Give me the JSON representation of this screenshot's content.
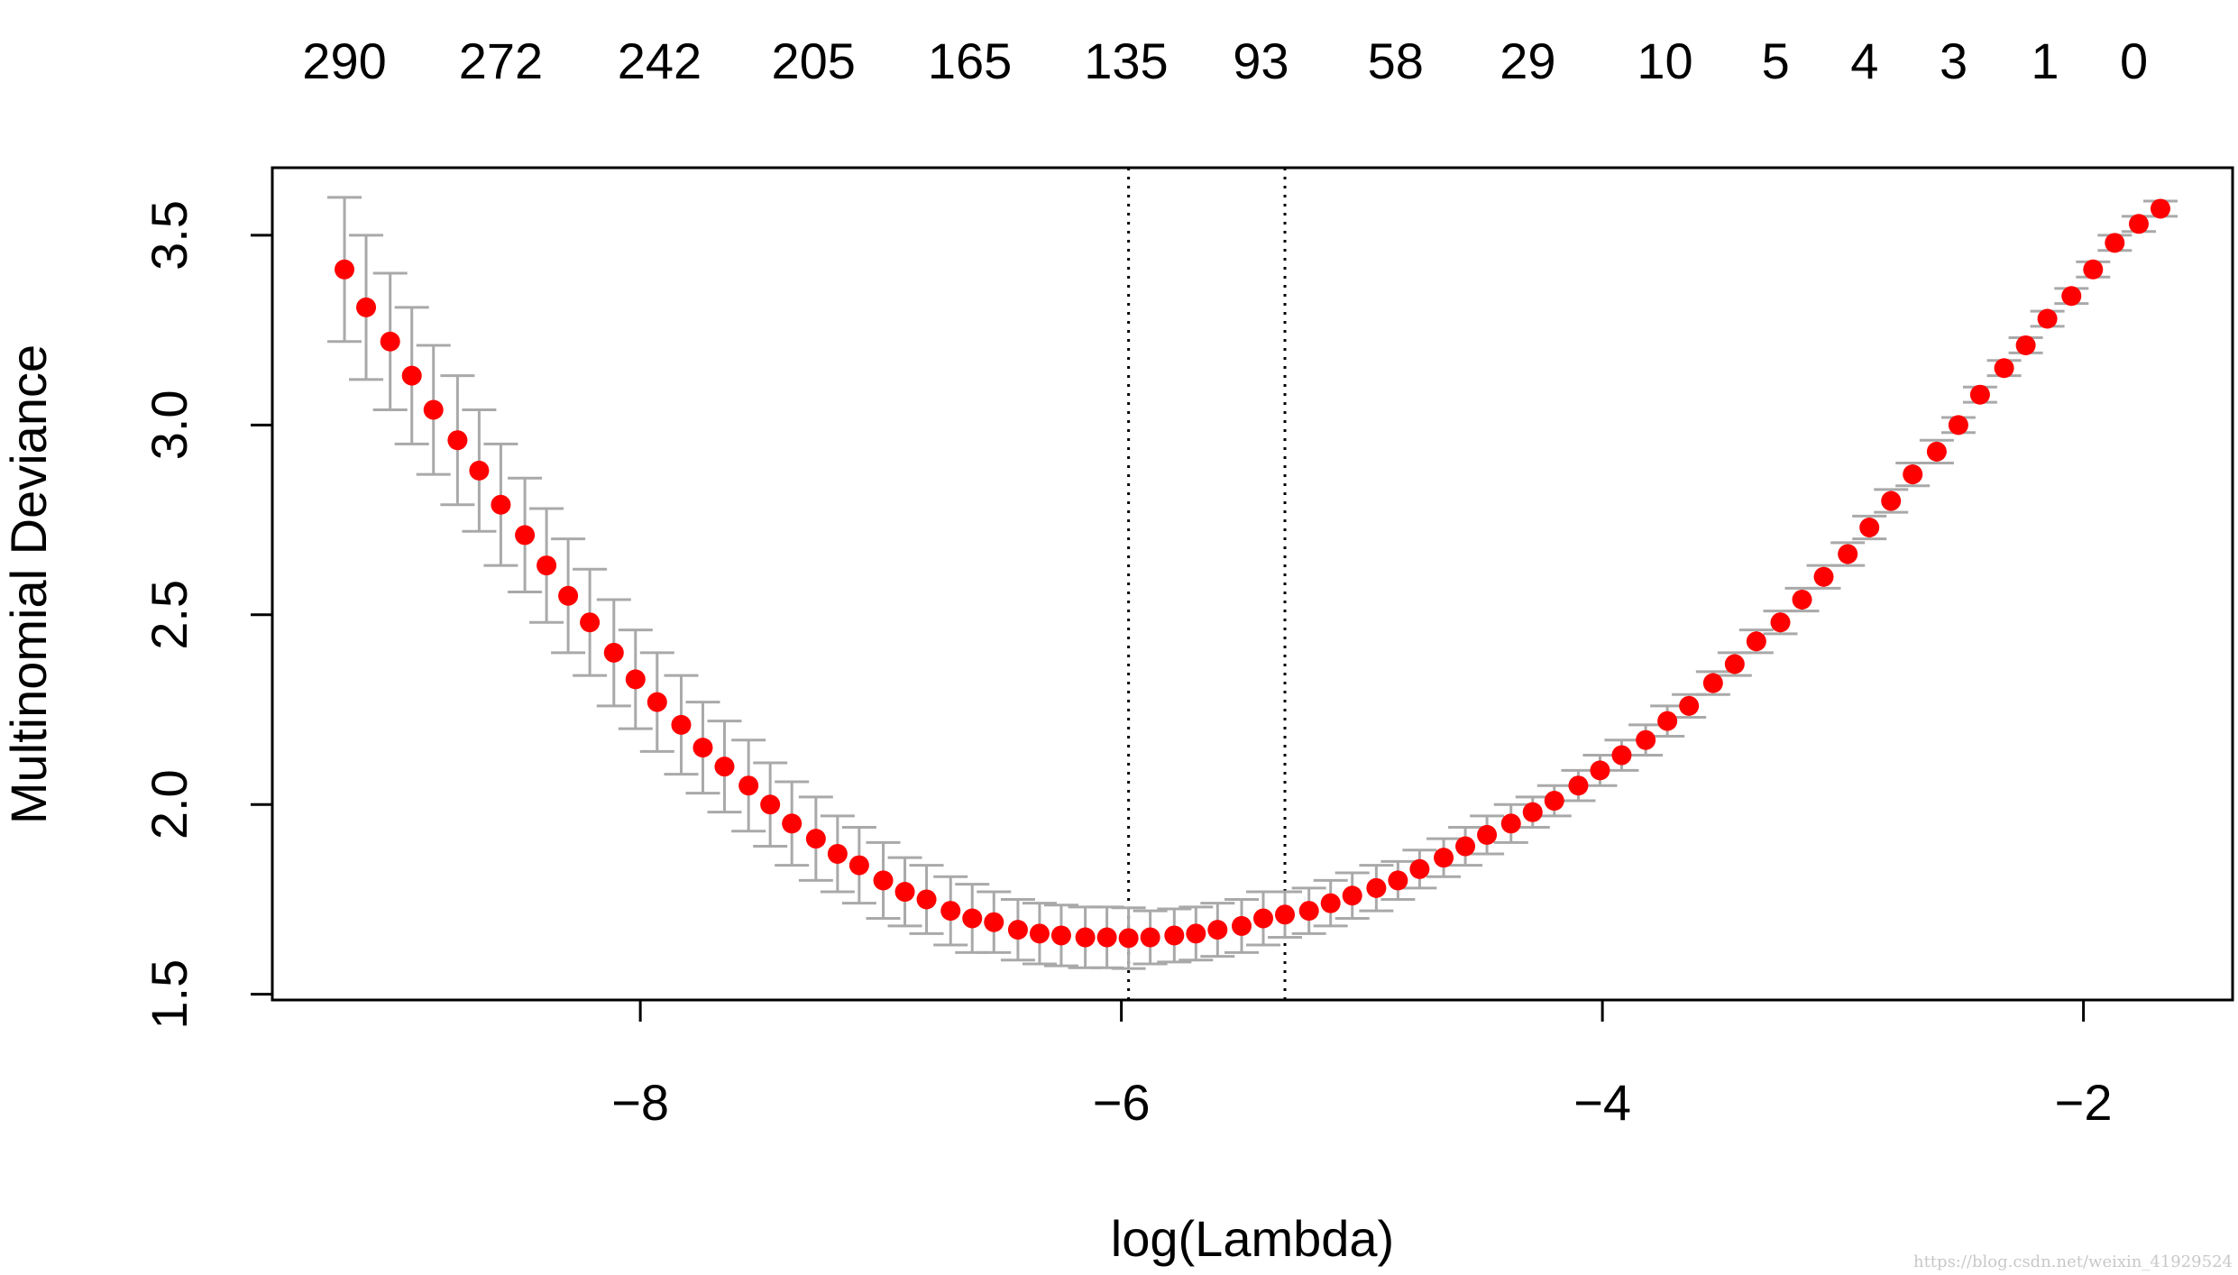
{
  "chart_data": {
    "type": "errorbar",
    "x_label": "log(Lambda)",
    "y_label": "Multinomial Deviance",
    "x": [
      -9.23,
      -9.14,
      -9.04,
      -8.95,
      -8.86,
      -8.76,
      -8.67,
      -8.58,
      -8.48,
      -8.39,
      -8.3,
      -8.21,
      -8.11,
      -8.02,
      -7.93,
      -7.83,
      -7.74,
      -7.65,
      -7.55,
      -7.46,
      -7.37,
      -7.27,
      -7.18,
      -7.09,
      -6.99,
      -6.9,
      -6.81,
      -6.71,
      -6.62,
      -6.53,
      -6.43,
      -6.34,
      -6.25,
      -6.15,
      -6.06,
      -5.97,
      -5.88,
      -5.78,
      -5.69,
      -5.6,
      -5.5,
      -5.41,
      -5.32,
      -5.22,
      -5.13,
      -5.04,
      -4.94,
      -4.85,
      -4.76,
      -4.66,
      -4.57,
      -4.48,
      -4.38,
      -4.29,
      -4.2,
      -4.1,
      -4.01,
      -3.92,
      -3.82,
      -3.73,
      -3.64,
      -3.54,
      -3.45,
      -3.36,
      -3.26,
      -3.17,
      -3.08,
      -2.98,
      -2.89,
      -2.8,
      -2.71,
      -2.61,
      -2.52,
      -2.43,
      -2.33,
      -2.24,
      -2.15,
      -2.05,
      -1.96,
      -1.87,
      -1.77,
      -1.68
    ],
    "values": [
      3.41,
      3.31,
      3.22,
      3.13,
      3.04,
      2.96,
      2.88,
      2.79,
      2.71,
      2.63,
      2.55,
      2.48,
      2.4,
      2.33,
      2.27,
      2.21,
      2.15,
      2.1,
      2.05,
      2.0,
      1.95,
      1.91,
      1.87,
      1.84,
      1.8,
      1.77,
      1.75,
      1.72,
      1.7,
      1.69,
      1.67,
      1.66,
      1.655,
      1.65,
      1.65,
      1.648,
      1.65,
      1.655,
      1.66,
      1.67,
      1.68,
      1.7,
      1.71,
      1.72,
      1.74,
      1.76,
      1.78,
      1.8,
      1.83,
      1.86,
      1.89,
      1.92,
      1.95,
      1.98,
      2.01,
      2.05,
      2.09,
      2.13,
      2.17,
      2.22,
      2.26,
      2.32,
      2.37,
      2.43,
      2.48,
      2.54,
      2.6,
      2.66,
      2.73,
      2.8,
      2.87,
      2.93,
      3.0,
      3.08,
      3.15,
      3.21,
      3.28,
      3.34,
      3.41,
      3.48,
      3.53,
      3.57
    ],
    "errors": [
      0.19,
      0.19,
      0.18,
      0.18,
      0.17,
      0.17,
      0.16,
      0.16,
      0.15,
      0.15,
      0.15,
      0.14,
      0.14,
      0.13,
      0.13,
      0.13,
      0.12,
      0.12,
      0.12,
      0.11,
      0.11,
      0.11,
      0.1,
      0.1,
      0.1,
      0.09,
      0.09,
      0.09,
      0.09,
      0.08,
      0.08,
      0.08,
      0.08,
      0.08,
      0.08,
      0.08,
      0.07,
      0.07,
      0.07,
      0.07,
      0.07,
      0.07,
      0.06,
      0.06,
      0.06,
      0.06,
      0.06,
      0.05,
      0.05,
      0.05,
      0.05,
      0.05,
      0.05,
      0.04,
      0.04,
      0.04,
      0.04,
      0.04,
      0.04,
      0.04,
      0.03,
      0.03,
      0.03,
      0.03,
      0.03,
      0.03,
      0.03,
      0.03,
      0.03,
      0.03,
      0.03,
      0.03,
      0.02,
      0.02,
      0.02,
      0.02,
      0.02,
      0.02,
      0.02,
      0.02,
      0.02,
      0.02
    ],
    "point_color": "#ff0000",
    "error_color": "#a9a9a9",
    "vlines": [
      -5.97,
      -5.32
    ],
    "xlim": [
      -9.53,
      -1.38
    ],
    "ylim": [
      1.485,
      3.678
    ],
    "xticks": [
      {
        "value": -8,
        "label": "−8"
      },
      {
        "value": -6,
        "label": "−6"
      },
      {
        "value": -4,
        "label": "−4"
      },
      {
        "value": -2,
        "label": "−2"
      }
    ],
    "yticks": [
      1.5,
      {
        "value": 2,
        "label": "2.0"
      },
      2.5,
      {
        "value": 3,
        "label": "3.0"
      },
      3.5
    ],
    "top_ticks": [
      {
        "value": -9.23,
        "label": "290"
      },
      {
        "value": -8.58,
        "label": "272"
      },
      {
        "value": -7.92,
        "label": "242"
      },
      {
        "value": -7.28,
        "label": "205"
      },
      {
        "value": -6.63,
        "label": "165"
      },
      {
        "value": -5.98,
        "label": "135"
      },
      {
        "value": -5.42,
        "label": "93"
      },
      {
        "value": -4.86,
        "label": "58"
      },
      {
        "value": -4.31,
        "label": "29"
      },
      {
        "value": -3.74,
        "label": "10"
      },
      {
        "value": -3.28,
        "label": "5"
      },
      {
        "value": -2.91,
        "label": "4"
      },
      {
        "value": -2.54,
        "label": "3"
      },
      {
        "value": -2.16,
        "label": "1"
      },
      {
        "value": -1.79,
        "label": "0"
      }
    ],
    "watermark": "https://blog.csdn.net/weixin_41929524"
  }
}
